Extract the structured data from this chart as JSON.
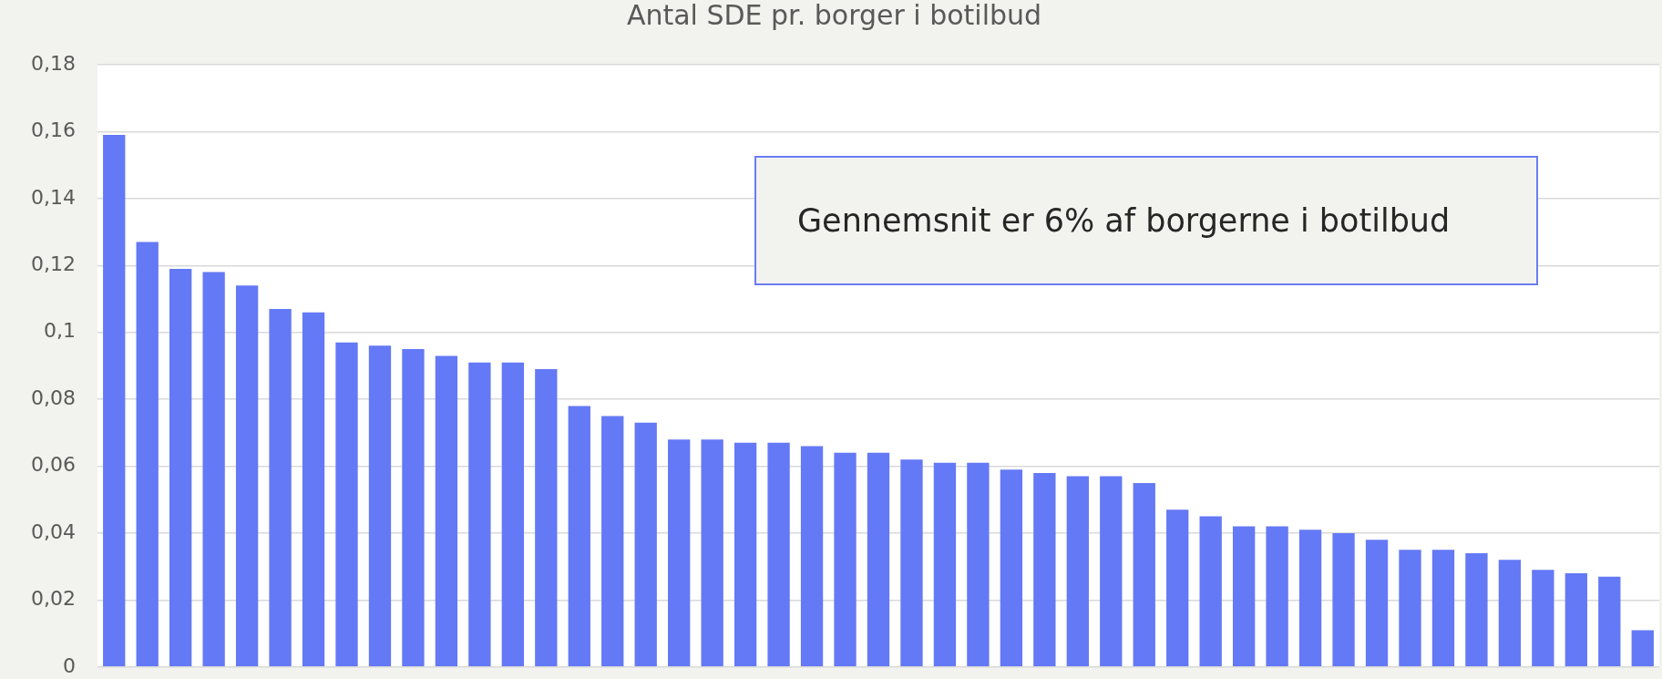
{
  "chart_data": {
    "type": "bar",
    "title": "Antal SDE pr. borger i botilbud",
    "categories": [
      null,
      null,
      null,
      null,
      null,
      null,
      null,
      null,
      null,
      null,
      null,
      null,
      null,
      null,
      null,
      null,
      null,
      null,
      null,
      null,
      null,
      null,
      null,
      null,
      null,
      null,
      null,
      null,
      null,
      null,
      null,
      null,
      null,
      null,
      null,
      null,
      null,
      null,
      null,
      null,
      null,
      null,
      null,
      null,
      null,
      null,
      null
    ],
    "values": [
      0.159,
      0.127,
      0.119,
      0.118,
      0.114,
      0.107,
      0.106,
      0.097,
      0.096,
      0.095,
      0.093,
      0.091,
      0.091,
      0.089,
      0.078,
      0.075,
      0.073,
      0.068,
      0.068,
      0.067,
      0.067,
      0.066,
      0.064,
      0.064,
      0.062,
      0.061,
      0.061,
      0.059,
      0.058,
      0.057,
      0.057,
      0.055,
      0.047,
      0.045,
      0.042,
      0.042,
      0.041,
      0.04,
      0.038,
      0.035,
      0.035,
      0.034,
      0.032,
      0.029,
      0.028,
      0.027,
      0.011
    ],
    "color": "#6479f5",
    "ylim": [
      0,
      0.18
    ],
    "yticks": [
      0,
      {
        "value": 0.02,
        "label": "0,02"
      },
      {
        "value": 0.04,
        "label": "0,04"
      },
      {
        "value": 0.06,
        "label": "0,06"
      },
      {
        "value": 0.08,
        "label": "0,08"
      },
      {
        "value": 0.1,
        "label": "0,1"
      },
      {
        "value": 0.12,
        "label": "0,12"
      },
      {
        "value": 0.14,
        "label": "0,14"
      },
      {
        "value": 0.16,
        "label": "0,16"
      },
      {
        "value": 0.18,
        "label": "0,18"
      }
    ],
    "grid": "y",
    "annotations": [
      "Gennemsnit er 6% af borgerne i botilbud"
    ]
  }
}
